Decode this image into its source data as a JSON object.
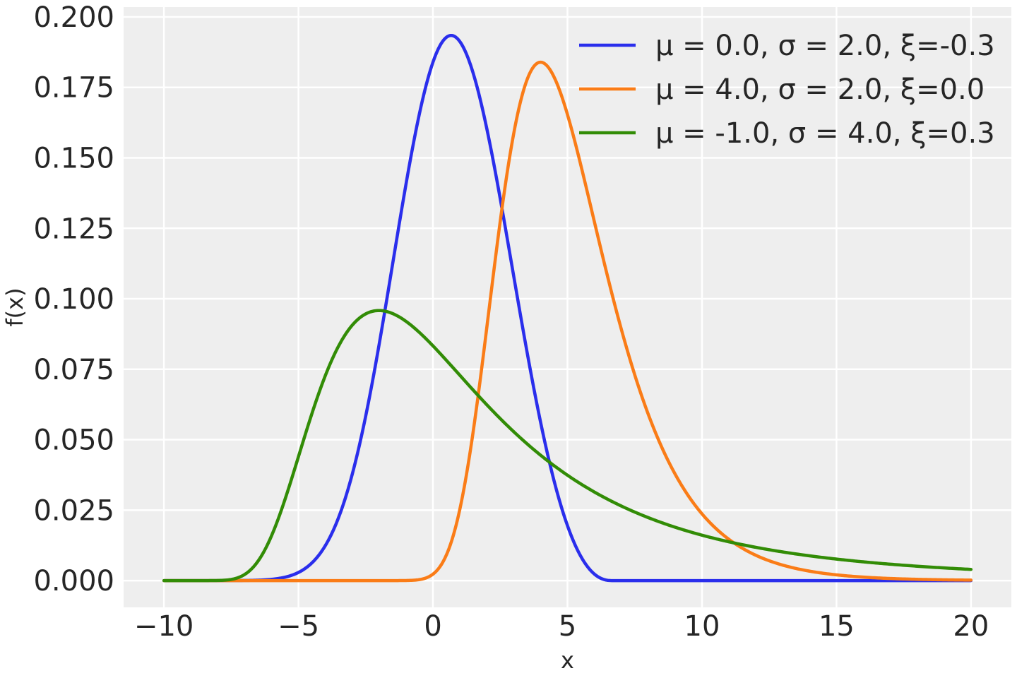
{
  "chart_data": {
    "type": "line",
    "title": "",
    "xlabel": "x",
    "ylabel": "f(x)",
    "xlim": [
      -11.5,
      21.5
    ],
    "ylim": [
      -0.0095,
      0.2035
    ],
    "xticks": [
      -10,
      -5,
      0,
      5,
      10,
      15,
      20
    ],
    "xtick_labels": [
      "−10",
      "−5",
      "0",
      "5",
      "10",
      "15",
      "20"
    ],
    "yticks": [
      0.0,
      0.025,
      0.05,
      0.075,
      0.1,
      0.125,
      0.15,
      0.175,
      0.2
    ],
    "ytick_labels": [
      "0.000",
      "0.025",
      "0.050",
      "0.075",
      "0.100",
      "0.125",
      "0.150",
      "0.175",
      "0.200"
    ],
    "grid": true,
    "legend_position": "top-right",
    "x_domain": [
      -10,
      20
    ],
    "series": [
      {
        "name": "μ = 0.0, σ = 2.0, ξ=-0.3",
        "legend_label": "μ = 0.0, σ = 2.0, ξ=-0.3",
        "mu": 0.0,
        "sigma": 2.0,
        "xi": -0.3,
        "color": "#2a2eec"
      },
      {
        "name": "μ = 4.0, σ = 2.0, ξ=0.0",
        "legend_label": "μ = 4.0, σ = 2.0, ξ=0.0",
        "mu": 4.0,
        "sigma": 2.0,
        "xi": 0.0,
        "color": "#fa7c17"
      },
      {
        "name": "μ = -1.0, σ = 4.0, ξ=0.3",
        "legend_label": "μ = -1.0, σ = 4.0, ξ=0.3",
        "mu": -1.0,
        "sigma": 4.0,
        "xi": 0.3,
        "color": "#328c06"
      }
    ],
    "background_color": "#eeeeee",
    "grid_color": "#ffffff"
  }
}
